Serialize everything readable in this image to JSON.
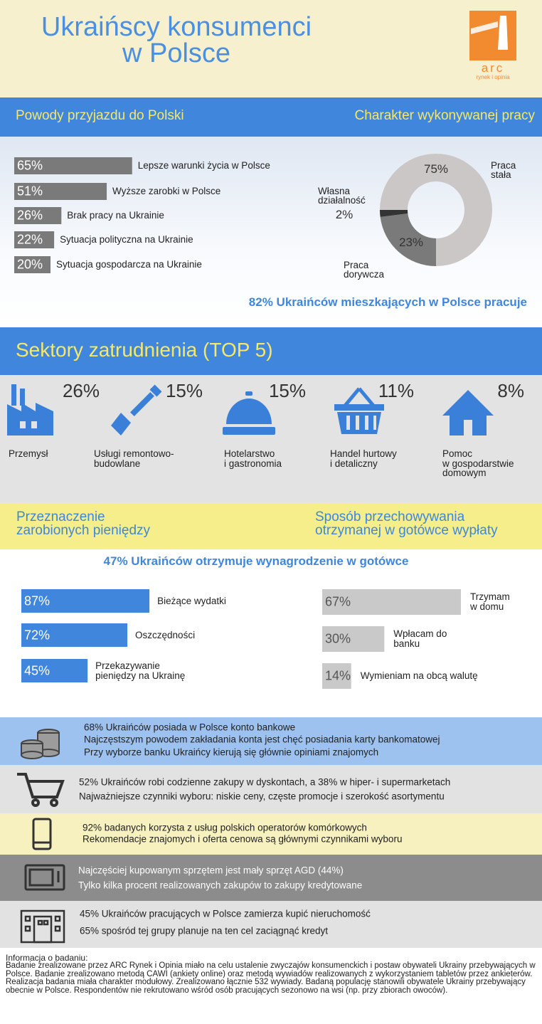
{
  "header": {
    "title": "Ukraińscy konsumenci\nw Polsce",
    "logo": "arc",
    "logo_tagline": "rynek i opinia"
  },
  "sections": {
    "reasons": "Powody przyjazdu do Polski",
    "work": "Charakter wykonywanej pracy",
    "work_note": "82% Ukraińców mieszkających w Polsce pracuje",
    "sectors": "Sektory zatrudnienia (TOP 5)",
    "spending": "Przeznaczenie\nzarobionych pieniędzy",
    "storage": "Sposób przechowywania\notrzymanej w gotówce wypłaty",
    "cash_note": "47% Ukraińców otrzymuje wynagrodzenie w gotówce"
  },
  "sectors": [
    {
      "value": "26%",
      "label": "Przemysł"
    },
    {
      "value": "15%",
      "label": "Usługi remontowo-\nbudowlane"
    },
    {
      "value": "15%",
      "label": "Hotelarstwo\ni gastronomia"
    },
    {
      "value": "11%",
      "label": "Handel hurtowy\ni detaliczny"
    },
    {
      "value": "8%",
      "label": "Pomoc\nw gospodarstwie\ndomowym"
    }
  ],
  "facts": [
    [
      "68% Ukraińców posiada w Polsce konto bankowe",
      "Najczęstszym powodem zakładania konta jest chęć posiadania karty bankomatowej",
      "Przy wyborze banku Ukraińcy kierują się głównie opiniami znajomych"
    ],
    [
      "52% Ukraińców robi codzienne zakupy w dyskontach, a 38% w hiper- i supermarketach",
      "Najważniejsze czynniki wyboru: niskie ceny, częste promocje i szerokość asortymentu"
    ],
    [
      "92% badanych korzysta z usług polskich operatorów komórkowych",
      "Rekomendacje znajomych i oferta cenowa są głównymi czynnikami wyboru"
    ],
    [
      "Najczęściej kupowanym sprzętem jest mały sprzęt AGD (44%)",
      "Tylko kilka procent realizowanych zakupów to zakupy kredytowane"
    ],
    [
      "45% Ukraińców pracujących w Polsce zamierza kupić nieruchomość",
      "65% spośród tej grupy planuje na ten cel zaciągnąć kredyt"
    ]
  ],
  "footer": {
    "title": "Informacja o badaniu:",
    "text": "Badanie zrealizowane przez ARC Rynek i Opinia miało na celu ustalenie zwyczajów konsumenckich i postaw obywateli Ukrainy przebywających w Polsce. Badanie zrealizowano metodą CAWI (ankiety online) oraz metodą wywiadów realizowanych z wykorzystaniem tabletów przez ankieterów. Realizacja badania miała charakter modułowy. Zrealizowano łącznie 532 wywiady. Badaną populację stanowili obywatele Ukrainy przebywający obecnie w Polsce. Respondentów nie rekrutowano wśród osób pracujących sezonowo na wsi (np. przy zbiorach owoców)."
  },
  "chart_data": [
    {
      "type": "bar",
      "color": "#7a7a7a",
      "label_color": "#ffffff",
      "categories": [
        "Lepsze warunki życia w Polsce",
        "Wyższe zarobki w Polsce",
        "Brak pracy na Ukrainie",
        "Sytuacja polityczna na Ukrainie",
        "Sytuacja gospodarcza na Ukrainie"
      ],
      "values": [
        65,
        51,
        26,
        22,
        20
      ],
      "value_labels": [
        "65%",
        "51%",
        "26%",
        "22%",
        "20%"
      ]
    },
    {
      "type": "pie",
      "colors": [
        "#cbc7c6",
        "#7a7a7a",
        "#333333"
      ],
      "categories": [
        "Praca\nstała",
        "Praca\ndorywcza",
        "Własna\ndziałalność"
      ],
      "values": [
        75,
        23,
        2
      ],
      "value_labels": [
        "75%",
        "23%",
        "2%"
      ]
    },
    {
      "type": "bar",
      "color": "#3f86dc",
      "label_color": "#ffffff",
      "categories": [
        "Bieżące wydatki",
        "Oszczędności",
        "Przekazywanie\npieniędzy na Ukrainę"
      ],
      "values": [
        87,
        72,
        45
      ],
      "value_labels": [
        "87%",
        "72%",
        "45%"
      ]
    },
    {
      "type": "bar",
      "color": "#c9c9c9",
      "label_color": "#555555",
      "categories": [
        "Trzymam\nw domu",
        "Wpłacam do\nbanku",
        "Wymieniam na obcą walutę"
      ],
      "values": [
        67,
        30,
        14
      ],
      "value_labels": [
        "67%",
        "30%",
        "14%"
      ]
    }
  ]
}
